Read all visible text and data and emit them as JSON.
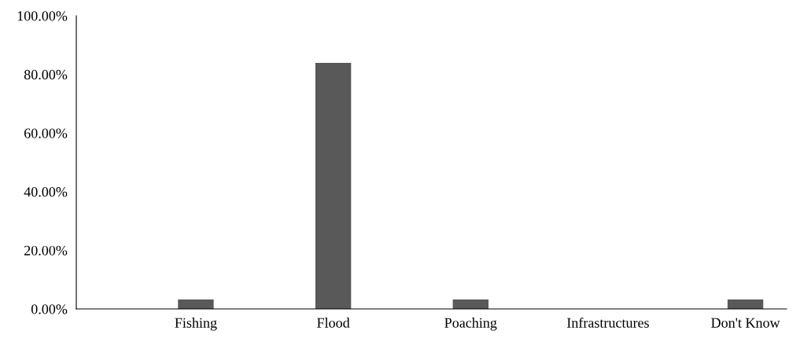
{
  "chart_data": {
    "type": "bar",
    "categories": [
      "Fishing",
      "Flood",
      "Poaching",
      "Infrastructures",
      "Don't Know"
    ],
    "values": [
      3.2,
      83.9,
      3.2,
      0,
      3.2
    ],
    "color": "#595959",
    "ylim": [
      0,
      100
    ],
    "yticks": [
      {
        "value": 0,
        "label": "0.00%"
      },
      {
        "value": 20,
        "label": "20.00%"
      },
      {
        "value": 40,
        "label": "40.00%"
      },
      {
        "value": 60,
        "label": "60.00%"
      },
      {
        "value": 80,
        "label": "80.00%"
      },
      {
        "value": 100,
        "label": "100.00%"
      }
    ],
    "grid": false,
    "legend": false
  }
}
